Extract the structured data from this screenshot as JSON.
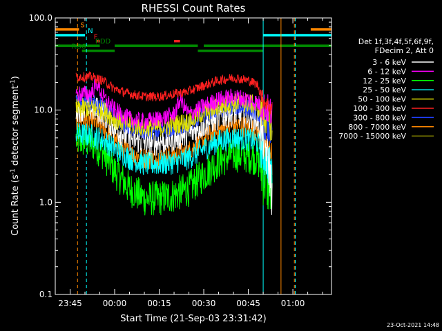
{
  "chart_data": {
    "type": "line",
    "title": "RHESSI Count Rates",
    "xlabel": "Start Time (21-Sep-03 23:31:42)",
    "ylabel_main": "Count Rate (s",
    "ylabel_sup1": "-1",
    "ylabel_mid": " detector segment",
    "ylabel_sup2": "-1",
    "ylabel_end": ")",
    "y_scale": "log",
    "ylim": [
      0.1,
      100
    ],
    "yticks": [
      {
        "label": "0.1",
        "value": 0.1
      },
      {
        "label": "1.0",
        "value": 1.0
      },
      {
        "label": "10.0",
        "value": 10.0
      },
      {
        "label": "100.0",
        "value": 100.0
      }
    ],
    "xlim_minutes": [
      -20,
      73
    ],
    "xticks": [
      {
        "label": "23:45",
        "t": -15
      },
      {
        "label": "00:00",
        "t": 0
      },
      {
        "label": "00:15",
        "t": 15
      },
      {
        "label": "00:30",
        "t": 30
      },
      {
        "label": "00:45",
        "t": 45
      },
      {
        "label": "01:00",
        "t": 60
      }
    ],
    "data_start": -13,
    "data_end": 53,
    "series": [
      {
        "name": "3 - 6 keV",
        "color": "#ffffff",
        "t": [
          -13,
          -8,
          -4,
          0,
          5,
          10,
          15,
          20,
          25,
          30,
          35,
          40,
          45,
          48,
          50,
          52,
          53
        ],
        "v": [
          10.5,
          10.5,
          9.5,
          6.5,
          5,
          4.5,
          4.5,
          5,
          5.5,
          7,
          8.5,
          9.5,
          9,
          8,
          5,
          2.5,
          1.2
        ]
      },
      {
        "name": "6 - 12 keV",
        "color": "#ff00ff",
        "t": [
          -13,
          -8,
          -6,
          -4,
          0,
          5,
          10,
          15,
          20,
          22,
          25,
          30,
          35,
          40,
          45,
          48,
          50,
          52,
          53
        ],
        "v": [
          15,
          15,
          20,
          14,
          10,
          8,
          7.5,
          8,
          9,
          13,
          9,
          11,
          13,
          14,
          13,
          12,
          11,
          10,
          9
        ]
      },
      {
        "name": "12 - 25 keV",
        "color": "#00ff00",
        "t": [
          -13,
          -8,
          -4,
          0,
          5,
          10,
          15,
          20,
          25,
          30,
          35,
          40,
          45,
          48,
          50,
          52,
          53
        ],
        "v": [
          4.8,
          4.5,
          3.5,
          2.2,
          1.4,
          1.1,
          1.1,
          1.2,
          1.4,
          2,
          2.8,
          3.3,
          3.2,
          3,
          2,
          1.5,
          1.2
        ]
      },
      {
        "name": "25 - 50 keV",
        "color": "#00ffff",
        "t": [
          -13,
          -8,
          -4,
          0,
          5,
          10,
          15,
          20,
          25,
          30,
          35,
          40,
          45,
          48,
          50,
          52,
          53
        ],
        "v": [
          5.5,
          5.3,
          4.8,
          3.8,
          3,
          2.6,
          2.6,
          2.7,
          3,
          3.8,
          4.6,
          5,
          4.8,
          4.5,
          3.5,
          2.5,
          2
        ]
      },
      {
        "name": "50 - 100 keV",
        "color": "#e0e000",
        "t": [
          -13,
          -8,
          -4,
          0,
          5,
          10,
          15,
          20,
          25,
          30,
          35,
          40,
          45,
          48,
          50,
          52,
          53
        ],
        "v": [
          10.5,
          10.5,
          10,
          8,
          7,
          6.5,
          6.5,
          7,
          7.5,
          9.5,
          11,
          12,
          12,
          11,
          9,
          7.5,
          7
        ]
      },
      {
        "name": "100 - 300 keV",
        "color": "#ff2020",
        "t": [
          -13,
          -8,
          -4,
          0,
          5,
          10,
          15,
          20,
          25,
          30,
          35,
          40,
          45,
          48,
          50,
          52,
          53
        ],
        "v": [
          23,
          23,
          21,
          17,
          15,
          14,
          14,
          15,
          16,
          18.5,
          21,
          22.5,
          21,
          19,
          13,
          11,
          10.5
        ]
      },
      {
        "name": "300 - 800 keV",
        "color": "#2040ff",
        "t": [
          -13,
          -8,
          -4,
          0,
          5,
          10,
          15,
          20,
          25,
          30,
          35,
          40,
          45,
          48,
          50,
          52,
          53
        ],
        "v": [
          12,
          12,
          11,
          8.5,
          6.5,
          5.8,
          5.8,
          6.3,
          7,
          8.8,
          10.3,
          11,
          10.5,
          9.5,
          7.5,
          6,
          5.5
        ]
      },
      {
        "name": "800 - 7000 keV",
        "color": "#ff8800",
        "t": [
          -13,
          -8,
          -4,
          0,
          5,
          10,
          15,
          20,
          25,
          30,
          35,
          40,
          45,
          48,
          50,
          52,
          53
        ],
        "v": [
          8,
          7.8,
          6.5,
          4.5,
          3.4,
          3,
          3,
          3.2,
          3.6,
          4.8,
          6,
          6.8,
          6.5,
          5.8,
          4,
          3.2,
          3
        ]
      },
      {
        "name": "7000 - 15000 keV",
        "color": "#808000",
        "t": [],
        "v": []
      }
    ],
    "flag_bars": [
      {
        "label": "S",
        "color": "#ff8800",
        "segments": [
          [
            -20,
            -12
          ],
          [
            66,
            73
          ]
        ],
        "level": 75
      },
      {
        "label": "N",
        "color": "#00ffff",
        "segments": [
          [
            -20,
            -10
          ],
          [
            50,
            73
          ]
        ],
        "level": 65
      },
      {
        "label": "F",
        "color": "#ff2020",
        "segments": [
          [
            -6,
            -5
          ],
          [
            20,
            22
          ]
        ],
        "level": 56
      },
      {
        "label": "RDD",
        "color": "#008800",
        "segments": [
          [
            -20,
            -5
          ],
          [
            0,
            28
          ],
          [
            30,
            73
          ]
        ],
        "level": 50
      },
      {
        "label": "RD6",
        "color": "#008800",
        "segments": [
          [
            -11,
            0
          ],
          [
            28,
            50
          ]
        ],
        "level": 44
      }
    ],
    "vlines": [
      {
        "t": -20,
        "color": "#00ffff",
        "dash": false
      },
      {
        "t": -12.5,
        "color": "#ff8800",
        "dash": true
      },
      {
        "t": -9.5,
        "color": "#00ffff",
        "dash": true
      },
      {
        "t": 50,
        "color": "#00ffff",
        "dash": false
      },
      {
        "t": 56,
        "color": "#ff8800",
        "dash": false
      },
      {
        "t": 60.5,
        "color": "#ff8800",
        "dash": true
      },
      {
        "t": 60.8,
        "color": "#00ffff",
        "dash": true
      }
    ],
    "legend_header": [
      "Det 1f,3f,4f,5f,6f,9f,",
      "FDecim 2, Att 0"
    ],
    "legend_placement": "right",
    "timestamp": "23-Oct-2021 14:48"
  }
}
